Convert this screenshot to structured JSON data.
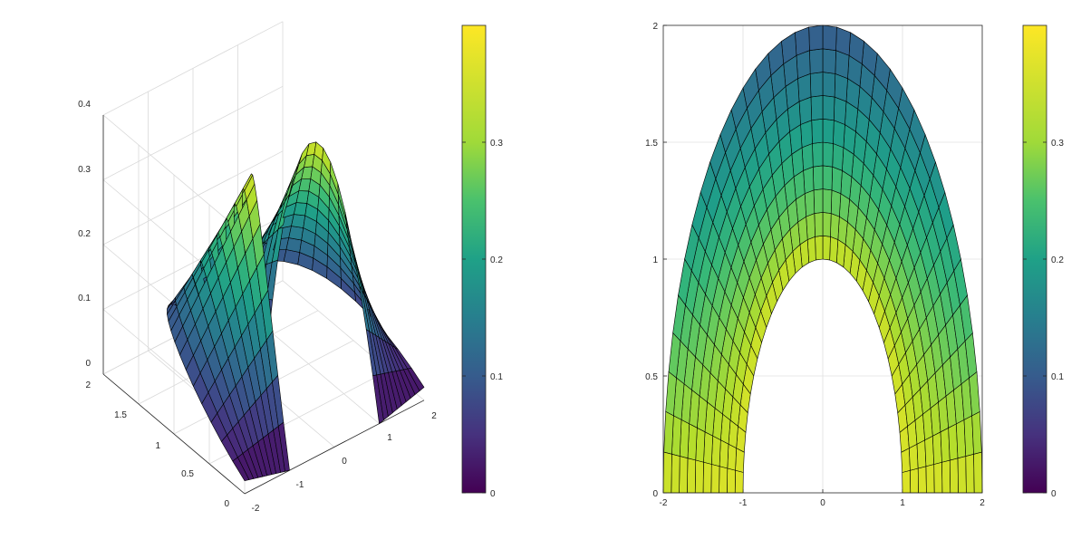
{
  "chart_data": [
    {
      "type": "surface3d",
      "title": "",
      "xlabel": "",
      "ylabel": "",
      "zlabel": "",
      "x_ticks": [
        "-2",
        "-1",
        "0",
        "1",
        "2"
      ],
      "y_ticks": [
        "0",
        "0.5",
        "1",
        "1.5",
        "2"
      ],
      "z_ticks": [
        "0",
        "0.1",
        "0.2",
        "0.3",
        "0.4"
      ],
      "xlim": [
        -2,
        2
      ],
      "ylim": [
        0,
        2
      ],
      "zlim": [
        0,
        0.4
      ],
      "grid": true,
      "surface": {
        "domain": "upper half annulus, radius 1 to 2, angle 0 to pi",
        "r_range": [
          1,
          2
        ],
        "theta_range": [
          0,
          3.14159
        ],
        "n_r": 10,
        "n_theta": 36,
        "z_range": [
          0,
          0.4
        ]
      },
      "colorbar": {
        "ticks": [
          "0",
          "0.1",
          "0.2",
          "0.3"
        ],
        "clim": [
          0,
          0.4
        ],
        "colormap": "viridis"
      }
    },
    {
      "type": "surface2d",
      "title": "",
      "xlabel": "",
      "ylabel": "",
      "x_ticks": [
        "-2",
        "-1",
        "0",
        "1",
        "2"
      ],
      "y_ticks": [
        "0",
        "0.5",
        "1",
        "1.5",
        "2"
      ],
      "xlim": [
        -2,
        2
      ],
      "ylim": [
        0,
        2
      ],
      "grid": true,
      "view": "top",
      "colorbar": {
        "ticks": [
          "0",
          "0.1",
          "0.2",
          "0.3"
        ],
        "clim": [
          0,
          0.4
        ],
        "colormap": "viridis"
      }
    }
  ]
}
